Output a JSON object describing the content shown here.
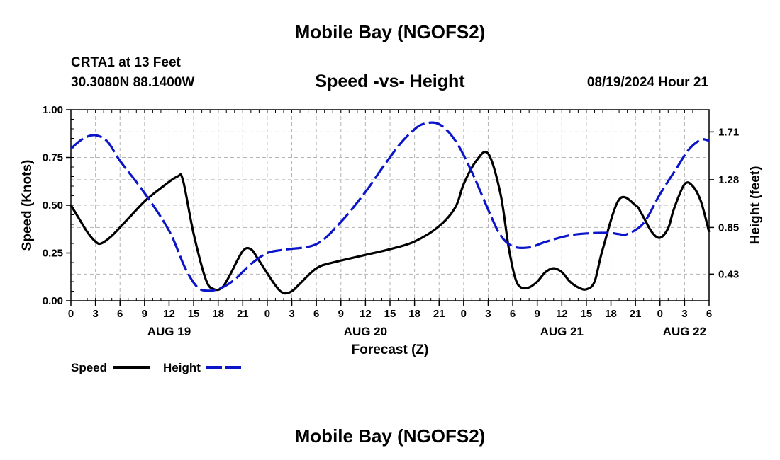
{
  "header": {
    "title": "Mobile Bay (NGOFS2)",
    "station": "CRTA1 at 13 Feet",
    "coords": "30.3080N  88.1400W",
    "chart_title": "Speed -vs- Height",
    "datetime": "08/19/2024 Hour 21",
    "bottom_title": "Mobile Bay (NGOFS2)"
  },
  "legend": {
    "speed_label": "Speed",
    "height_label": "Height"
  },
  "colors": {
    "speed": "#000000",
    "height": "#0a14c8",
    "grid": "#b4b4b4"
  },
  "chart_data": {
    "type": "line",
    "title": "Speed -vs- Height",
    "xlabel": "Forecast (Z)",
    "ylabel": "Speed (Knots)",
    "y2label": "Height (feet)",
    "x_unit": "hours since 2024-08-19 00Z",
    "xlim": [
      0,
      78
    ],
    "ylim": [
      0,
      1
    ],
    "y2lim": [
      0.19,
      1.91
    ],
    "x_ticks": [
      0,
      3,
      6,
      9,
      12,
      15,
      18,
      21,
      24,
      27,
      30,
      33,
      36,
      39,
      42,
      45,
      48,
      51,
      54,
      57,
      60,
      63,
      66,
      69,
      72,
      75,
      78
    ],
    "x_tick_labels": [
      "0",
      "3",
      "6",
      "9",
      "12",
      "15",
      "18",
      "21",
      "0",
      "3",
      "6",
      "9",
      "12",
      "15",
      "18",
      "21",
      "0",
      "3",
      "6",
      "9",
      "12",
      "15",
      "18",
      "21",
      "0",
      "3",
      "6"
    ],
    "date_labels": [
      {
        "x": 12,
        "label": "AUG 19"
      },
      {
        "x": 36,
        "label": "AUG 20"
      },
      {
        "x": 60,
        "label": "AUG 21"
      },
      {
        "x": 75,
        "label": "AUG 22"
      }
    ],
    "y_ticks": [
      0,
      0.25,
      0.5,
      0.75,
      1.0
    ],
    "y_tick_labels": [
      "0.00",
      "0.25",
      "0.50",
      "0.75",
      "1.00"
    ],
    "y2_ticks": [
      0.43,
      0.85,
      1.28,
      1.71
    ],
    "y2_tick_labels": [
      "0.43",
      "0.85",
      "1.28",
      "1.71"
    ],
    "grid": true,
    "series": [
      {
        "name": "Speed",
        "axis": "left",
        "style": "solid",
        "x": [
          0,
          1,
          2,
          3,
          3.7,
          5,
          7,
          9,
          11,
          13,
          13.7,
          15,
          16.5,
          17.5,
          18.5,
          19.5,
          21,
          22,
          23,
          25,
          26,
          27,
          28,
          30,
          32,
          36,
          39,
          42,
          45,
          47,
          48,
          49.5,
          51,
          52.5,
          53.5,
          54.3,
          55,
          56,
          57,
          58,
          59,
          60,
          61,
          62,
          63,
          64,
          65,
          67,
          69,
          69.7,
          71,
          72,
          73,
          73.7,
          75,
          76,
          77,
          78
        ],
        "y": [
          0.5,
          0.43,
          0.36,
          0.31,
          0.3,
          0.34,
          0.43,
          0.52,
          0.59,
          0.65,
          0.63,
          0.35,
          0.11,
          0.06,
          0.07,
          0.14,
          0.26,
          0.27,
          0.21,
          0.08,
          0.04,
          0.05,
          0.09,
          0.17,
          0.2,
          0.24,
          0.27,
          0.31,
          0.39,
          0.49,
          0.61,
          0.73,
          0.77,
          0.56,
          0.28,
          0.12,
          0.07,
          0.07,
          0.1,
          0.15,
          0.17,
          0.15,
          0.1,
          0.07,
          0.06,
          0.1,
          0.27,
          0.53,
          0.5,
          0.46,
          0.36,
          0.33,
          0.38,
          0.48,
          0.61,
          0.6,
          0.52,
          0.36
        ]
      },
      {
        "name": "Height",
        "axis": "right",
        "style": "dashed",
        "x": [
          0,
          1.5,
          3,
          4.5,
          6,
          9,
          12,
          14,
          15.5,
          17,
          18.5,
          20,
          22,
          24,
          26,
          30,
          33,
          36,
          38,
          40,
          41.5,
          43,
          45,
          47,
          49,
          51,
          52.5,
          54,
          56,
          58,
          61,
          64,
          66,
          67,
          68,
          70,
          72,
          74,
          75.5,
          77,
          78
        ],
        "y": [
          1.56,
          1.65,
          1.68,
          1.62,
          1.45,
          1.16,
          0.82,
          0.48,
          0.31,
          0.28,
          0.31,
          0.38,
          0.52,
          0.62,
          0.65,
          0.7,
          0.9,
          1.17,
          1.38,
          1.58,
          1.7,
          1.78,
          1.78,
          1.63,
          1.35,
          1.01,
          0.78,
          0.68,
          0.67,
          0.72,
          0.78,
          0.8,
          0.8,
          0.79,
          0.79,
          0.89,
          1.15,
          1.38,
          1.55,
          1.64,
          1.63
        ]
      }
    ]
  }
}
